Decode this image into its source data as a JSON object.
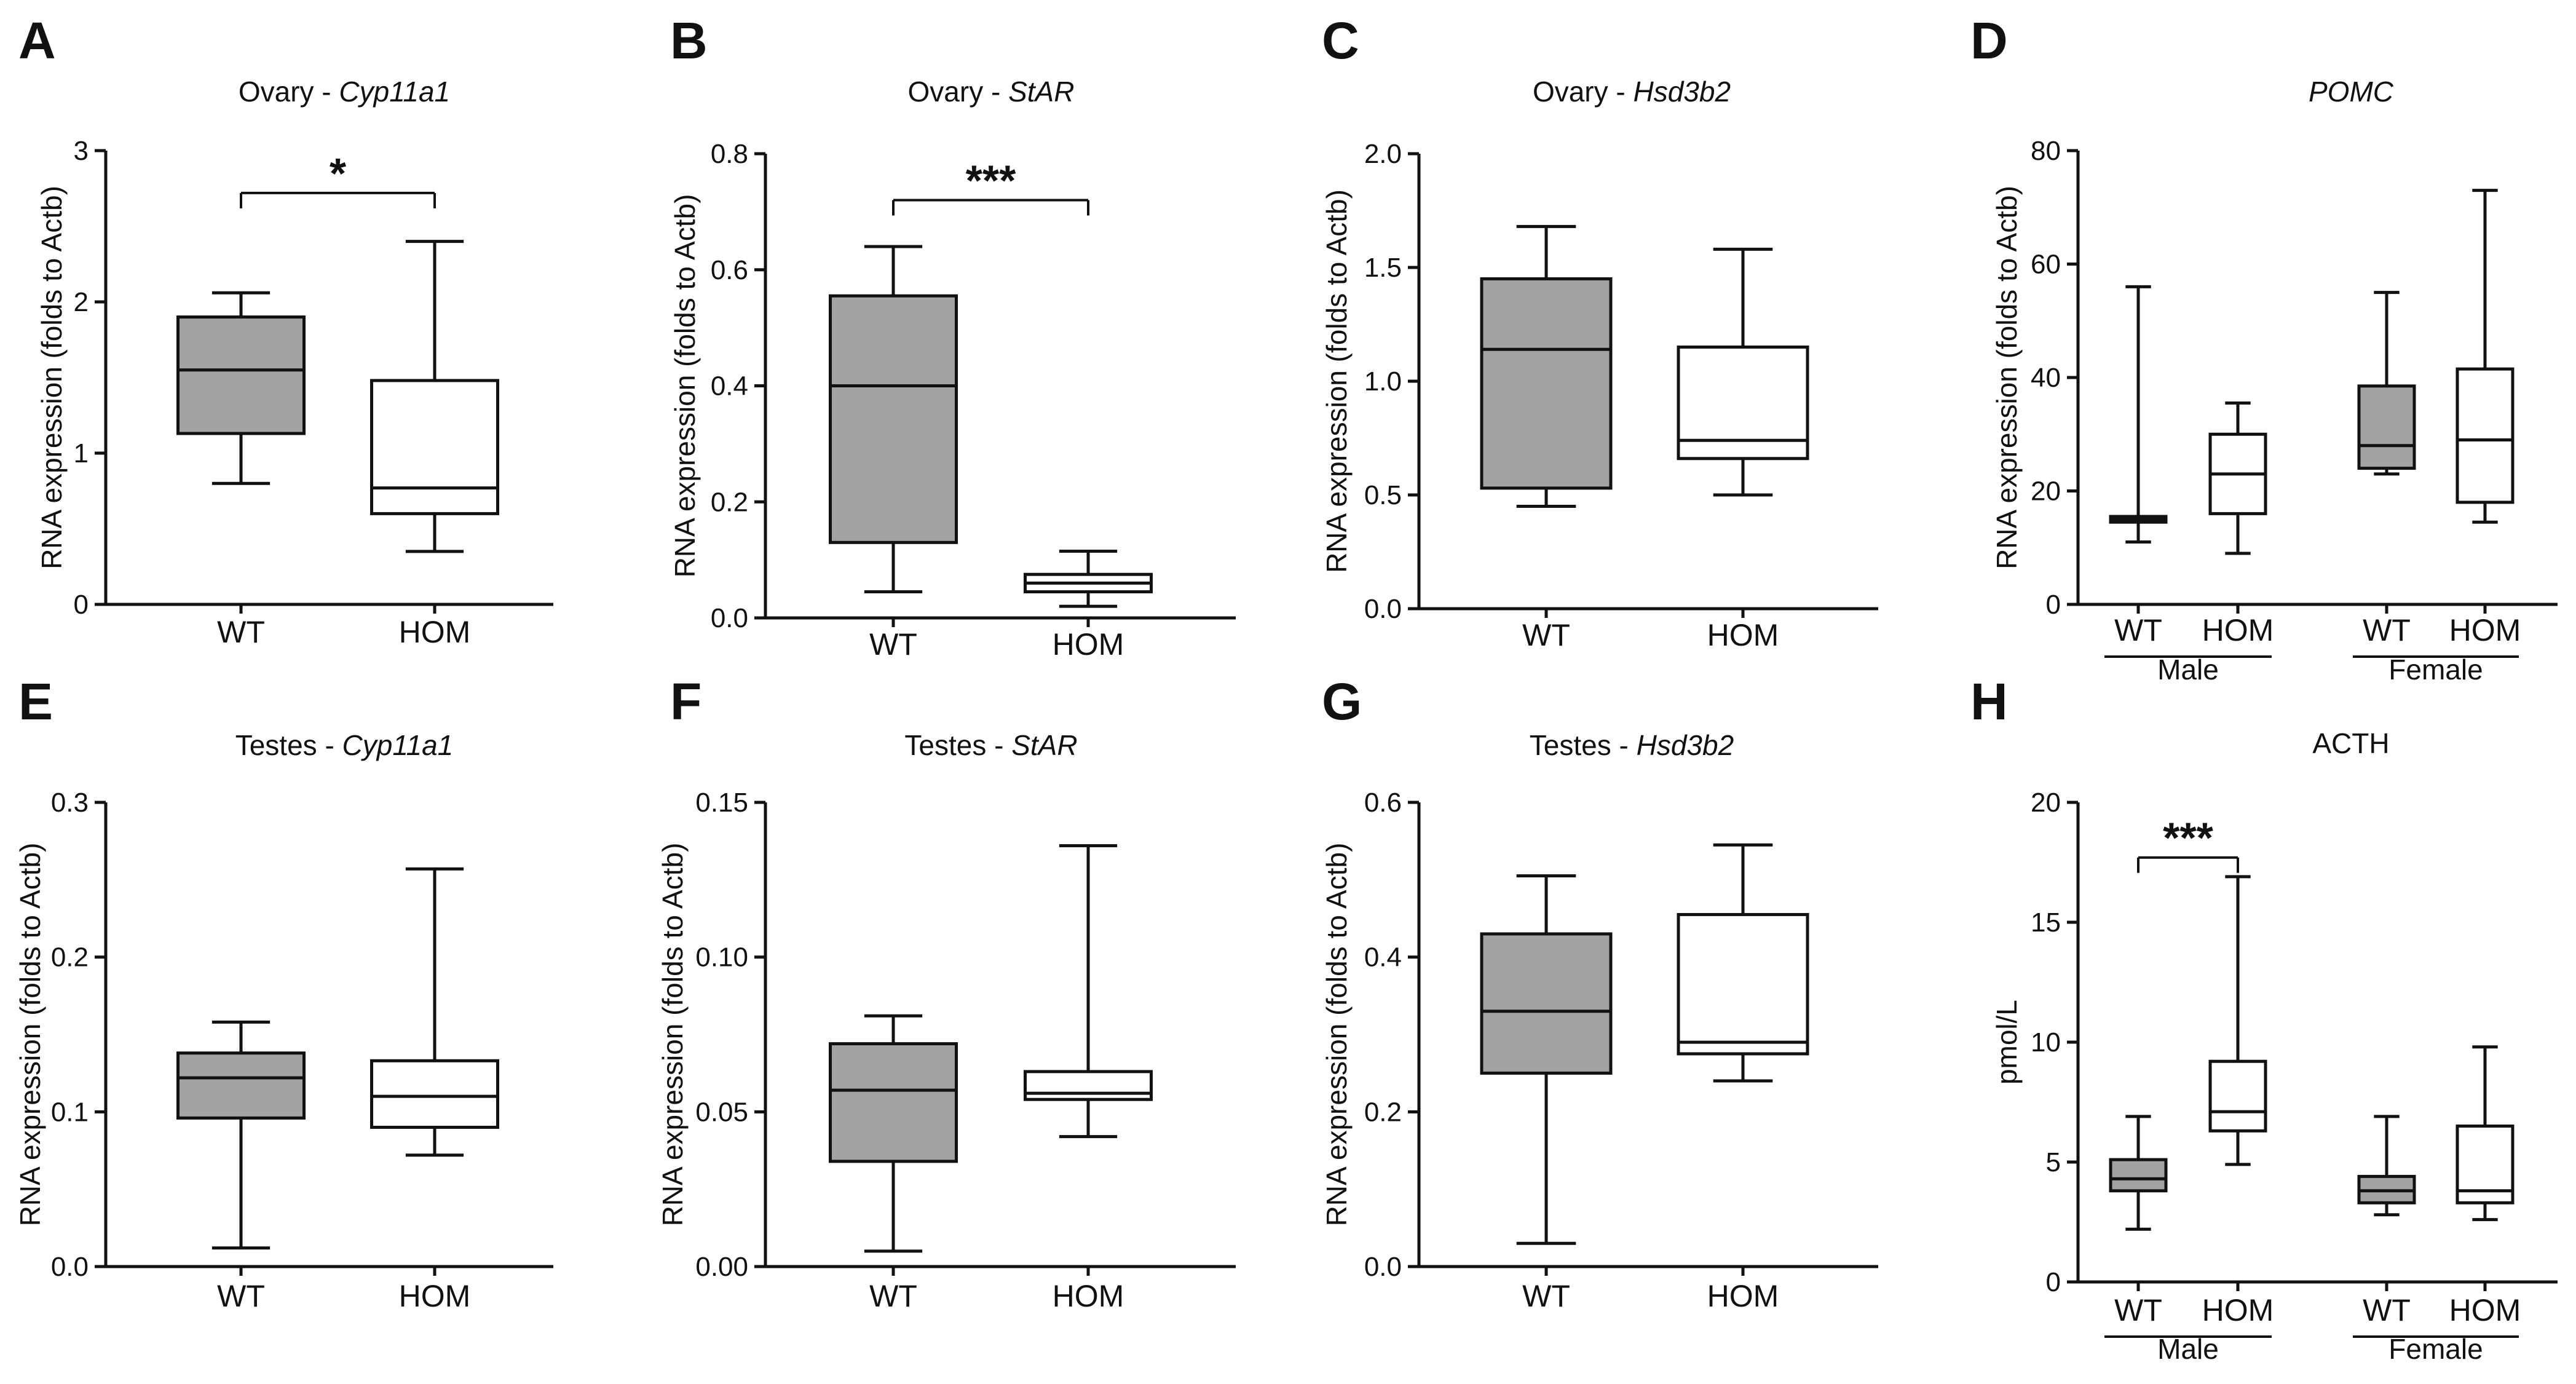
{
  "colors": {
    "wt_fill": "#a3a3a3",
    "hom_fill": "#ffffff",
    "stroke": "#111111"
  },
  "chart_data": [
    {
      "panel": "A",
      "type": "boxplot",
      "title_prefix": "Ovary - ",
      "title_italic": "Cyp11a1",
      "ylabel": "RNA expression (folds to Actb)",
      "ylim": [
        0,
        3
      ],
      "yticks": [
        "0",
        "1",
        "2",
        "3"
      ],
      "categories": [
        "WT",
        "HOM"
      ],
      "boxes": [
        {
          "label": "WT",
          "fill": "wt",
          "min": 0.8,
          "q1": 1.13,
          "median": 1.55,
          "q3": 1.9,
          "max": 2.06
        },
        {
          "label": "HOM",
          "fill": "hom",
          "min": 0.35,
          "q1": 0.6,
          "median": 0.77,
          "q3": 1.48,
          "max": 2.4
        }
      ],
      "significance": [
        {
          "from": 0,
          "to": 1,
          "label": "*"
        }
      ]
    },
    {
      "panel": "B",
      "type": "boxplot",
      "title_prefix": "Ovary - ",
      "title_italic": "StAR",
      "ylabel": "RNA expression (folds to Actb)",
      "ylim": [
        0,
        0.8
      ],
      "yticks": [
        "0.0",
        "0.2",
        "0.4",
        "0.6",
        "0.8"
      ],
      "categories": [
        "WT",
        "HOM"
      ],
      "boxes": [
        {
          "label": "WT",
          "fill": "wt",
          "min": 0.045,
          "q1": 0.13,
          "median": 0.4,
          "q3": 0.555,
          "max": 0.64
        },
        {
          "label": "HOM",
          "fill": "hom",
          "min": 0.02,
          "q1": 0.045,
          "median": 0.06,
          "q3": 0.075,
          "max": 0.115
        }
      ],
      "significance": [
        {
          "from": 0,
          "to": 1,
          "label": "***"
        }
      ]
    },
    {
      "panel": "C",
      "type": "boxplot",
      "title_prefix": "Ovary - ",
      "title_italic": "Hsd3b2",
      "ylabel": "RNA expression (folds to Actb)",
      "ylim": [
        0,
        2
      ],
      "yticks": [
        "0.0",
        "0.5",
        "1.0",
        "1.5",
        "2.0"
      ],
      "categories": [
        "WT",
        "HOM"
      ],
      "boxes": [
        {
          "label": "WT",
          "fill": "wt",
          "min": 0.45,
          "q1": 0.53,
          "median": 1.14,
          "q3": 1.45,
          "max": 1.68
        },
        {
          "label": "HOM",
          "fill": "hom",
          "min": 0.5,
          "q1": 0.66,
          "median": 0.74,
          "q3": 1.15,
          "max": 1.58
        }
      ],
      "significance": []
    },
    {
      "panel": "D",
      "type": "boxplot",
      "title_prefix": "",
      "title_italic": "POMC",
      "ylabel": "RNA expression (folds to Actb)",
      "ylim": [
        0,
        80
      ],
      "yticks": [
        "0",
        "20",
        "40",
        "60",
        "80"
      ],
      "categories": [
        "WT",
        "HOM",
        "WT",
        "HOM"
      ],
      "groups": [
        "Male",
        "Female"
      ],
      "boxes": [
        {
          "label": "WT",
          "fill": "wt",
          "min": 11,
          "q1": 14.5,
          "median": 15,
          "q3": 15.5,
          "max": 56
        },
        {
          "label": "HOM",
          "fill": "hom",
          "min": 9,
          "q1": 16,
          "median": 23,
          "q3": 30,
          "max": 35.5
        },
        {
          "label": "WT",
          "fill": "wt",
          "min": 23,
          "q1": 24,
          "median": 28,
          "q3": 38.5,
          "max": 55
        },
        {
          "label": "HOM",
          "fill": "hom",
          "min": 14.5,
          "q1": 18,
          "median": 29,
          "q3": 41.5,
          "max": 73
        }
      ],
      "significance": []
    },
    {
      "panel": "E",
      "type": "boxplot",
      "title_prefix": "Testes - ",
      "title_italic": "Cyp11a1",
      "ylabel": "RNA expression (folds to Actb)",
      "ylim": [
        0,
        0.3
      ],
      "yticks": [
        "0.0",
        "0.1",
        "0.2",
        "0.3"
      ],
      "categories": [
        "WT",
        "HOM"
      ],
      "boxes": [
        {
          "label": "WT",
          "fill": "wt",
          "min": 0.012,
          "q1": 0.096,
          "median": 0.122,
          "q3": 0.138,
          "max": 0.158
        },
        {
          "label": "HOM",
          "fill": "hom",
          "min": 0.072,
          "q1": 0.09,
          "median": 0.11,
          "q3": 0.133,
          "max": 0.257
        }
      ],
      "significance": []
    },
    {
      "panel": "F",
      "type": "boxplot",
      "title_prefix": "Testes - ",
      "title_italic": "StAR",
      "ylabel": "RNA expression (folds to Actb)",
      "ylim": [
        0,
        0.15
      ],
      "yticks": [
        "0.00",
        "0.05",
        "0.10",
        "0.15"
      ],
      "categories": [
        "WT",
        "HOM"
      ],
      "boxes": [
        {
          "label": "WT",
          "fill": "wt",
          "min": 0.005,
          "q1": 0.034,
          "median": 0.057,
          "q3": 0.072,
          "max": 0.081
        },
        {
          "label": "HOM",
          "fill": "hom",
          "min": 0.042,
          "q1": 0.054,
          "median": 0.056,
          "q3": 0.063,
          "max": 0.136
        }
      ],
      "significance": []
    },
    {
      "panel": "G",
      "type": "boxplot",
      "title_prefix": "Testes - ",
      "title_italic": "Hsd3b2",
      "ylabel": "RNA expression (folds to Actb)",
      "ylim": [
        0,
        0.6
      ],
      "yticks": [
        "0.0",
        "0.2",
        "0.4",
        "0.6"
      ],
      "categories": [
        "WT",
        "HOM"
      ],
      "boxes": [
        {
          "label": "WT",
          "fill": "wt",
          "min": 0.03,
          "q1": 0.25,
          "median": 0.33,
          "q3": 0.43,
          "max": 0.505
        },
        {
          "label": "HOM",
          "fill": "hom",
          "min": 0.24,
          "q1": 0.275,
          "median": 0.29,
          "q3": 0.455,
          "max": 0.545
        }
      ],
      "significance": []
    },
    {
      "panel": "H",
      "type": "boxplot",
      "title_prefix": "ACTH",
      "title_italic": "",
      "ylabel": "pmol/L",
      "ylim": [
        0,
        20
      ],
      "yticks": [
        "0",
        "5",
        "10",
        "15",
        "20"
      ],
      "categories": [
        "WT",
        "HOM",
        "WT",
        "HOM"
      ],
      "groups": [
        "Male",
        "Female"
      ],
      "boxes": [
        {
          "label": "WT",
          "fill": "wt",
          "min": 2.2,
          "q1": 3.8,
          "median": 4.3,
          "q3": 5.1,
          "max": 6.9
        },
        {
          "label": "HOM",
          "fill": "hom",
          "min": 4.9,
          "q1": 6.3,
          "median": 7.1,
          "q3": 9.2,
          "max": 16.9
        },
        {
          "label": "WT",
          "fill": "wt",
          "min": 2.8,
          "q1": 3.3,
          "median": 3.8,
          "q3": 4.4,
          "max": 6.9
        },
        {
          "label": "HOM",
          "fill": "hom",
          "min": 2.6,
          "q1": 3.3,
          "median": 3.8,
          "q3": 6.5,
          "max": 9.8
        }
      ],
      "significance": [
        {
          "from": 0,
          "to": 1,
          "label": "***"
        }
      ]
    }
  ]
}
